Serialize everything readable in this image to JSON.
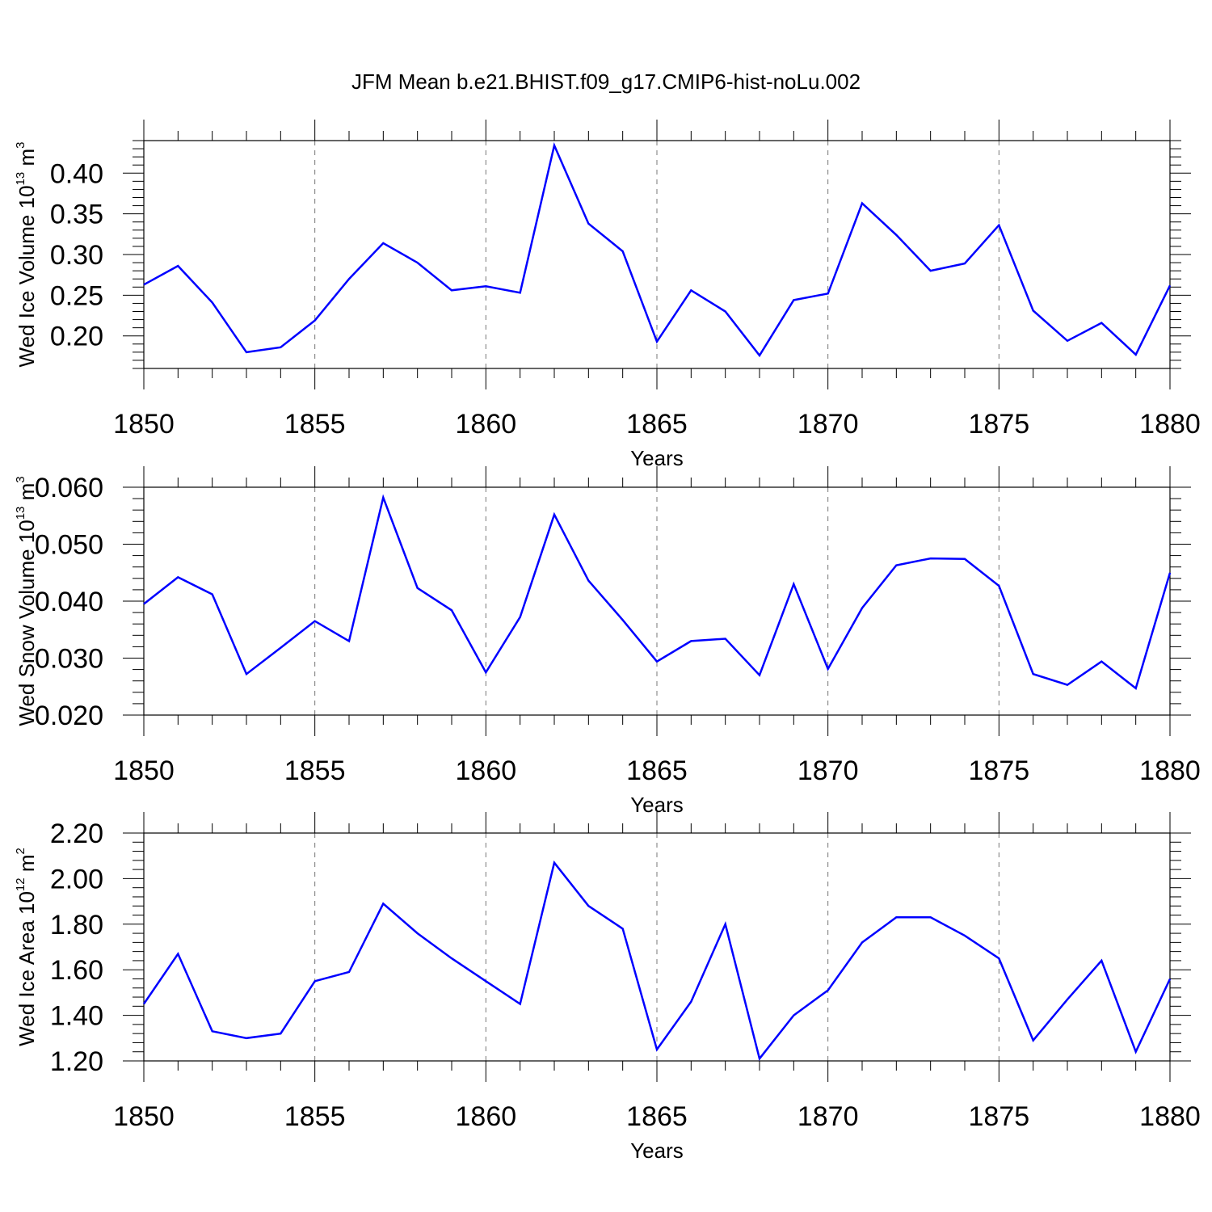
{
  "title": "JFM Mean b.e21.BHIST.f09_g17.CMIP6-hist-noLu.002",
  "colors": {
    "line": "#0000ff",
    "axis": "#000000",
    "grid": "#777777"
  },
  "chart_data": [
    {
      "type": "line",
      "xlabel": "Years",
      "ylabel": "Wed Ice Volume 10",
      "ylabel_exp": "13",
      "ylabel_unit": " m",
      "ylabel_unit_exp": "3",
      "xlim": [
        1850,
        1880
      ],
      "ylim": [
        0.16,
        0.44
      ],
      "yticks": [
        0.2,
        0.25,
        0.3,
        0.35,
        0.4
      ],
      "ytick_labels": [
        "0.20",
        "0.25",
        "0.30",
        "0.35",
        "0.40"
      ],
      "xticks": [
        1850,
        1855,
        1860,
        1865,
        1870,
        1875,
        1880
      ],
      "xtick_labels": [
        "1850",
        "1855",
        "1860",
        "1865",
        "1870",
        "1875",
        "1880"
      ],
      "grid": "vertical dashed at major x ticks",
      "series": [
        {
          "x": [
            1850,
            1851,
            1852,
            1853,
            1854,
            1855,
            1856,
            1857,
            1858,
            1859,
            1860,
            1861,
            1862,
            1863,
            1864,
            1865,
            1866,
            1867,
            1868,
            1869,
            1870,
            1871,
            1872,
            1873,
            1874,
            1875,
            1876,
            1877,
            1878,
            1879,
            1880
          ],
          "values": [
            0.263,
            0.286,
            0.241,
            0.18,
            0.186,
            0.219,
            0.27,
            0.314,
            0.29,
            0.256,
            0.261,
            0.253,
            0.434,
            0.338,
            0.304,
            0.193,
            0.256,
            0.23,
            0.176,
            0.244,
            0.252,
            0.363,
            0.324,
            0.28,
            0.289,
            0.336,
            0.231,
            0.194,
            0.216,
            0.177,
            0.262
          ]
        }
      ]
    },
    {
      "type": "line",
      "xlabel": "Years",
      "ylabel": "Wed Snow Volume 10",
      "ylabel_exp": "13",
      "ylabel_unit": " m",
      "ylabel_unit_exp": "3",
      "xlim": [
        1850,
        1880
      ],
      "ylim": [
        0.02,
        0.06
      ],
      "yticks": [
        0.02,
        0.03,
        0.04,
        0.05,
        0.06
      ],
      "ytick_labels": [
        "0.020",
        "0.030",
        "0.040",
        "0.050",
        "0.060"
      ],
      "xticks": [
        1850,
        1855,
        1860,
        1865,
        1870,
        1875,
        1880
      ],
      "xtick_labels": [
        "1850",
        "1855",
        "1860",
        "1865",
        "1870",
        "1875",
        "1880"
      ],
      "grid": "vertical dashed at major x ticks",
      "series": [
        {
          "x": [
            1850,
            1851,
            1852,
            1853,
            1854,
            1855,
            1856,
            1857,
            1858,
            1859,
            1860,
            1861,
            1862,
            1863,
            1864,
            1865,
            1866,
            1867,
            1868,
            1869,
            1870,
            1871,
            1872,
            1873,
            1874,
            1875,
            1876,
            1877,
            1878,
            1879,
            1880
          ],
          "values": [
            0.0395,
            0.0442,
            0.0412,
            0.0272,
            0.0318,
            0.0365,
            0.033,
            0.0582,
            0.0423,
            0.0384,
            0.0275,
            0.0372,
            0.0552,
            0.0436,
            0.0367,
            0.0294,
            0.033,
            0.0334,
            0.027,
            0.043,
            0.0281,
            0.0388,
            0.0463,
            0.0475,
            0.0474,
            0.0427,
            0.0272,
            0.0253,
            0.0294,
            0.0247,
            0.045
          ]
        }
      ]
    },
    {
      "type": "line",
      "xlabel": "Years",
      "ylabel": "Wed Ice Area 10",
      "ylabel_exp": "12",
      "ylabel_unit": " m",
      "ylabel_unit_exp": "2",
      "xlim": [
        1850,
        1880
      ],
      "ylim": [
        1.2,
        2.2
      ],
      "yticks": [
        1.2,
        1.4,
        1.6,
        1.8,
        2.0,
        2.2
      ],
      "ytick_labels": [
        "1.20",
        "1.40",
        "1.60",
        "1.80",
        "2.00",
        "2.20"
      ],
      "xticks": [
        1850,
        1855,
        1860,
        1865,
        1870,
        1875,
        1880
      ],
      "xtick_labels": [
        "1850",
        "1855",
        "1860",
        "1865",
        "1870",
        "1875",
        "1880"
      ],
      "grid": "vertical dashed at major x ticks",
      "series": [
        {
          "x": [
            1850,
            1851,
            1852,
            1853,
            1854,
            1855,
            1856,
            1857,
            1858,
            1859,
            1860,
            1861,
            1862,
            1863,
            1864,
            1865,
            1866,
            1867,
            1868,
            1869,
            1870,
            1871,
            1872,
            1873,
            1874,
            1875,
            1876,
            1877,
            1878,
            1879,
            1880
          ],
          "values": [
            1.45,
            1.67,
            1.33,
            1.3,
            1.32,
            1.55,
            1.59,
            1.89,
            1.76,
            1.65,
            1.55,
            1.45,
            2.07,
            1.88,
            1.78,
            1.25,
            1.46,
            1.8,
            1.21,
            1.4,
            1.51,
            1.72,
            1.83,
            1.83,
            1.75,
            1.65,
            1.29,
            1.47,
            1.64,
            1.24,
            1.56
          ]
        }
      ]
    }
  ]
}
